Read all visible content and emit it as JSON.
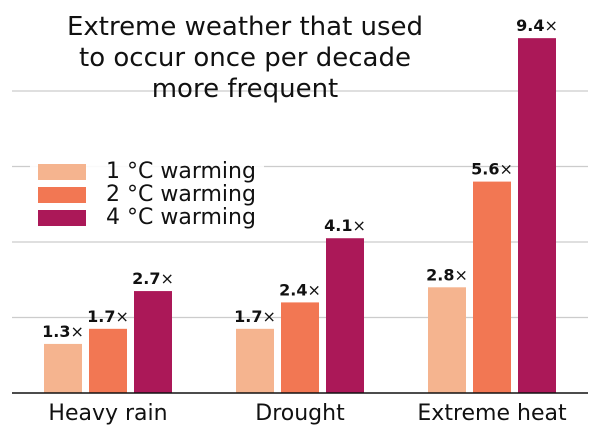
{
  "chart_data": {
    "type": "bar",
    "title": "Extreme weather that used\nto occur once per decade\nmore frequent",
    "xlabel": "",
    "ylabel": "",
    "categories": [
      "Heavy rain",
      "Drought",
      "Extreme heat"
    ],
    "series": [
      {
        "name": "1 °C warming",
        "color": "#f5b48f",
        "values": [
          1.3,
          1.7,
          2.8
        ],
        "labels": [
          "1.3×",
          "1.7×",
          "2.8×"
        ]
      },
      {
        "name": "2 °C warming",
        "color": "#f27753",
        "values": [
          1.7,
          2.4,
          5.6
        ],
        "labels": [
          "1.7×",
          "2.4×",
          "5.6×"
        ]
      },
      {
        "name": "4 °C warming",
        "color": "#ab1858",
        "values": [
          2.7,
          4.1,
          9.4
        ],
        "labels": [
          "2.7×",
          "4.1×",
          "9.4×"
        ]
      }
    ],
    "ylim": [
      0,
      10
    ],
    "gridlines": [
      2,
      4,
      6,
      8
    ],
    "grid": true,
    "y_tick_labels_visible": false,
    "legend_position": "center-left"
  }
}
